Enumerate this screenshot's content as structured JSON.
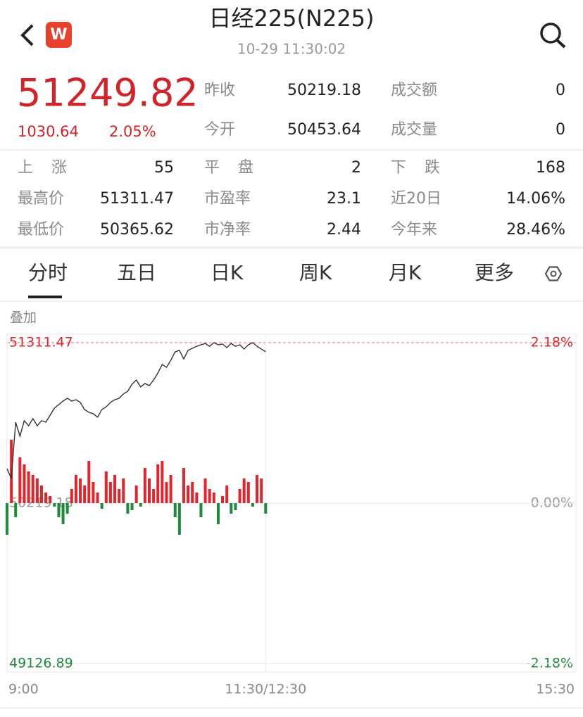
{
  "header": {
    "title": "日经225(N225)",
    "time": "10-29 11:30:02",
    "logo": "W"
  },
  "quote": {
    "price": "51249.82",
    "change": "1030.64",
    "change_pct": "2.05%"
  },
  "stats": [
    [
      "昨收",
      "50219.18",
      "成交额",
      "0"
    ],
    [
      "今开",
      "50453.64",
      "成交量",
      "0"
    ]
  ],
  "breadth": [
    [
      "上涨",
      "55",
      "平盘",
      "2",
      "下跌",
      "168"
    ],
    [
      "最高价",
      "51311.47",
      "市盈率",
      "23.1",
      "近20日",
      "14.06%"
    ],
    [
      "最低价",
      "50365.62",
      "市净率",
      "2.44",
      "今年来",
      "28.46%"
    ]
  ],
  "tabs": [
    "分时",
    "五日",
    "日K",
    "周K",
    "月K",
    "更多"
  ],
  "chart_data": {
    "type": "line",
    "overlay_label": "叠加",
    "x": [
      0,
      2.5,
      5,
      7.5,
      10,
      12.5,
      15,
      17.5,
      20,
      22.5,
      25,
      27.5,
      30,
      32.5,
      35,
      37.5,
      40,
      42.5,
      45,
      47.5,
      50,
      52.5,
      55,
      57.5,
      60,
      62.5,
      65,
      67.5,
      70,
      72.5,
      75,
      77.5,
      80,
      82.5,
      85,
      87.5,
      90,
      92.5,
      95,
      97.5,
      100,
      102.5,
      105,
      107.5,
      110,
      112.5,
      115,
      117.5,
      120,
      122.5,
      125,
      127.5,
      130,
      132.5,
      135,
      137.5,
      140,
      142.5,
      145,
      147.5,
      150
    ],
    "values": [
      50453,
      50387,
      50770,
      50675,
      50780,
      50746,
      50794,
      50746,
      50780,
      50770,
      50818,
      50866,
      50890,
      50914,
      50933,
      50914,
      50923,
      50904,
      50856,
      50837,
      50828,
      50804,
      50856,
      50875,
      50904,
      50923,
      50933,
      50962,
      50981,
      51029,
      51057,
      51010,
      51034,
      51019,
      51057,
      51105,
      51163,
      51144,
      51192,
      51249,
      51259,
      51201,
      51259,
      51273,
      51287,
      51297,
      51306,
      51287,
      51311.47,
      51297,
      51302,
      51278,
      51306,
      51287,
      51297,
      51268,
      51297,
      51311.47,
      51287,
      51268,
      51249.82
    ],
    "volume_values": [
      -45,
      90,
      -20,
      65,
      55,
      45,
      40,
      35,
      25,
      15,
      10,
      -5,
      -20,
      -30,
      -15,
      20,
      40,
      35,
      25,
      60,
      30,
      15,
      -8,
      45,
      30,
      40,
      20,
      35,
      -15,
      -10,
      25,
      -5,
      50,
      35,
      20,
      55,
      60,
      30,
      40,
      -20,
      -45,
      50,
      25,
      30,
      15,
      -20,
      35,
      20,
      15,
      -30,
      10,
      25,
      -15,
      -10,
      20,
      35,
      30,
      -5,
      40,
      35,
      -15
    ],
    "color": "#333333",
    "up_color": "#e0262b",
    "down_color": "#1e8a3c",
    "xlim": [
      0,
      330
    ],
    "xticks": [
      {
        "value": 0,
        "label": "9:00"
      },
      {
        "value": 150,
        "label": "11:30/12:30"
      },
      {
        "value": 330,
        "label": "15:30"
      }
    ],
    "ylim": [
      49126.89,
      51311.47
    ],
    "yticks": [
      51311.47,
      50219.18,
      49126.89
    ],
    "y2lim": [
      -2.18,
      2.18
    ],
    "y2ticks": [
      {
        "value": 2.18,
        "label": "2.18%"
      },
      {
        "value": 0,
        "label": "0.00%"
      },
      {
        "value": -2.18,
        "label": "-2.18%"
      }
    ],
    "grid": true
  }
}
